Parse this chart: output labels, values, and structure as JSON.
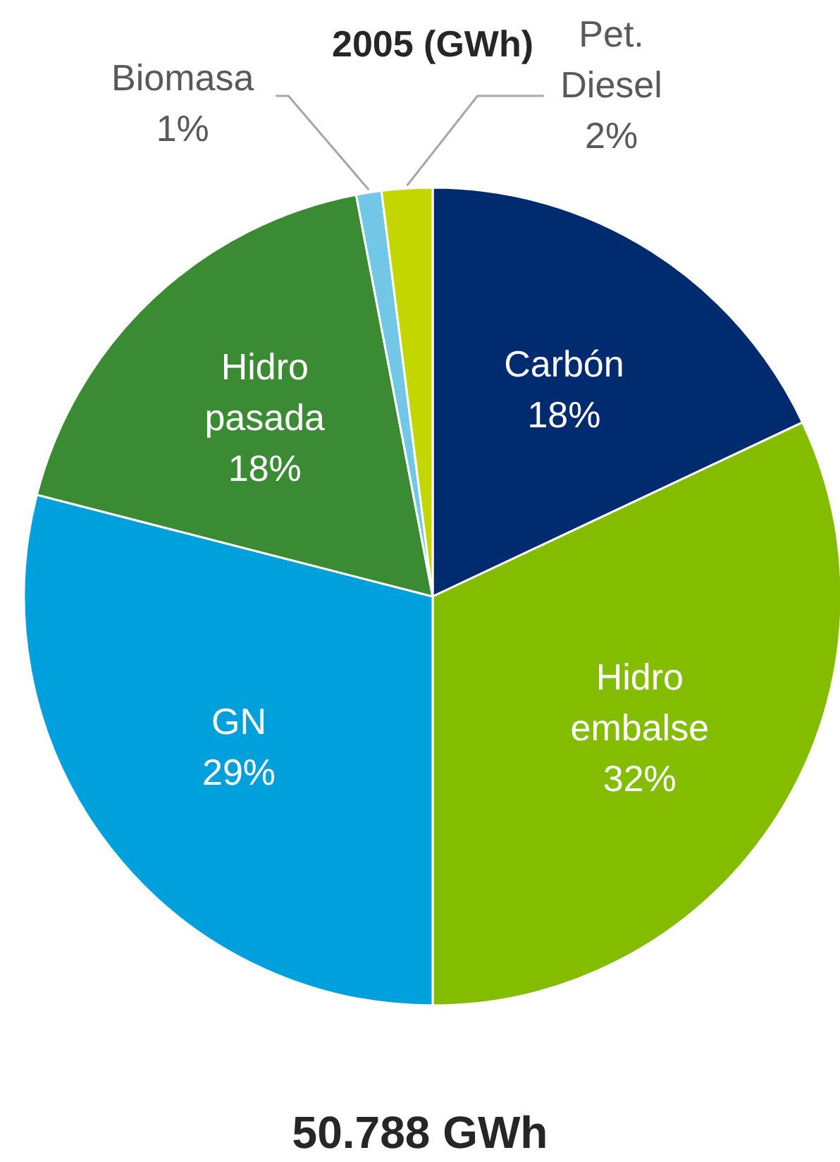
{
  "chart_data": {
    "type": "pie",
    "title": "2005 (GWh)",
    "categories": [
      "Carbón",
      "Hidro embalse",
      "GN",
      "Hidro pasada",
      "Biomasa",
      "Pet. Diesel"
    ],
    "values": [
      18,
      32,
      29,
      18,
      1,
      2
    ],
    "value_labels": [
      "18%",
      "32%",
      "29%",
      "18%",
      "1%",
      "2%"
    ],
    "colors": [
      "#002b6f",
      "#84bd00",
      "#00a0dd",
      "#3b8a34",
      "#72c7e7",
      "#c4d600"
    ],
    "annotations": [
      "50.788 GWh"
    ]
  }
}
